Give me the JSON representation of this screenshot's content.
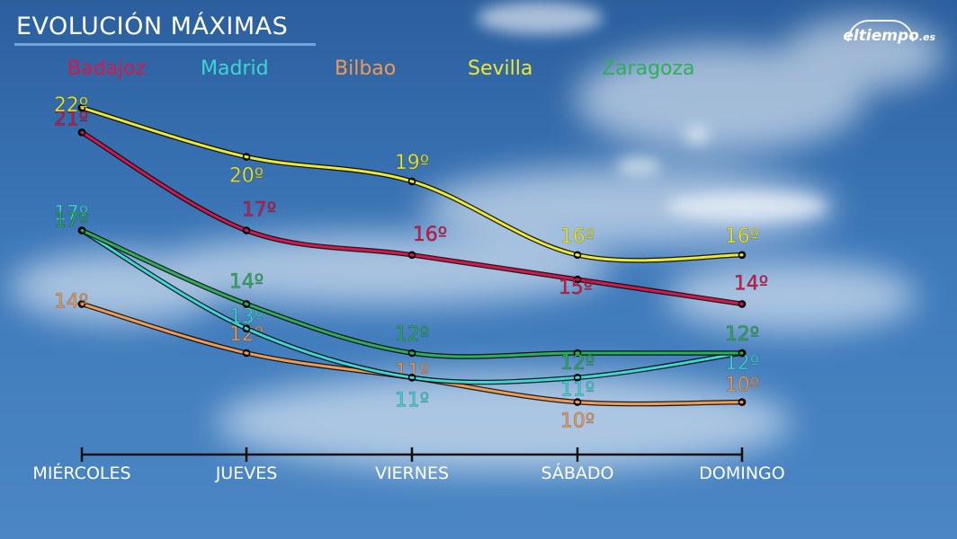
{
  "title": "EVOLUCIÓN MÁXIMAS",
  "brand": {
    "name": "eltiempo",
    "suffix": ".es"
  },
  "chart_data": {
    "type": "line",
    "categories": [
      "MIÉRCOLES",
      "JUEVES",
      "VIERNES",
      "SÁBADO",
      "DOMINGO"
    ],
    "unit": "º",
    "ylim": [
      8,
      24
    ],
    "legend_placement": "top",
    "grid": false,
    "series": [
      {
        "name": "Badajoz",
        "color": "#d8164a",
        "values": [
          21,
          17,
          16,
          15,
          14
        ]
      },
      {
        "name": "Madrid",
        "color": "#3fd6d3",
        "values": [
          17,
          13,
          11,
          11,
          12
        ]
      },
      {
        "name": "Bilbao",
        "color": "#f09a52",
        "values": [
          14,
          12,
          11,
          10,
          10
        ]
      },
      {
        "name": "Sevilla",
        "color": "#efe830",
        "values": [
          22,
          20,
          19,
          16,
          16
        ]
      },
      {
        "name": "Zaragoza",
        "color": "#2fae5a",
        "values": [
          17,
          14,
          12,
          12,
          12
        ]
      }
    ]
  }
}
